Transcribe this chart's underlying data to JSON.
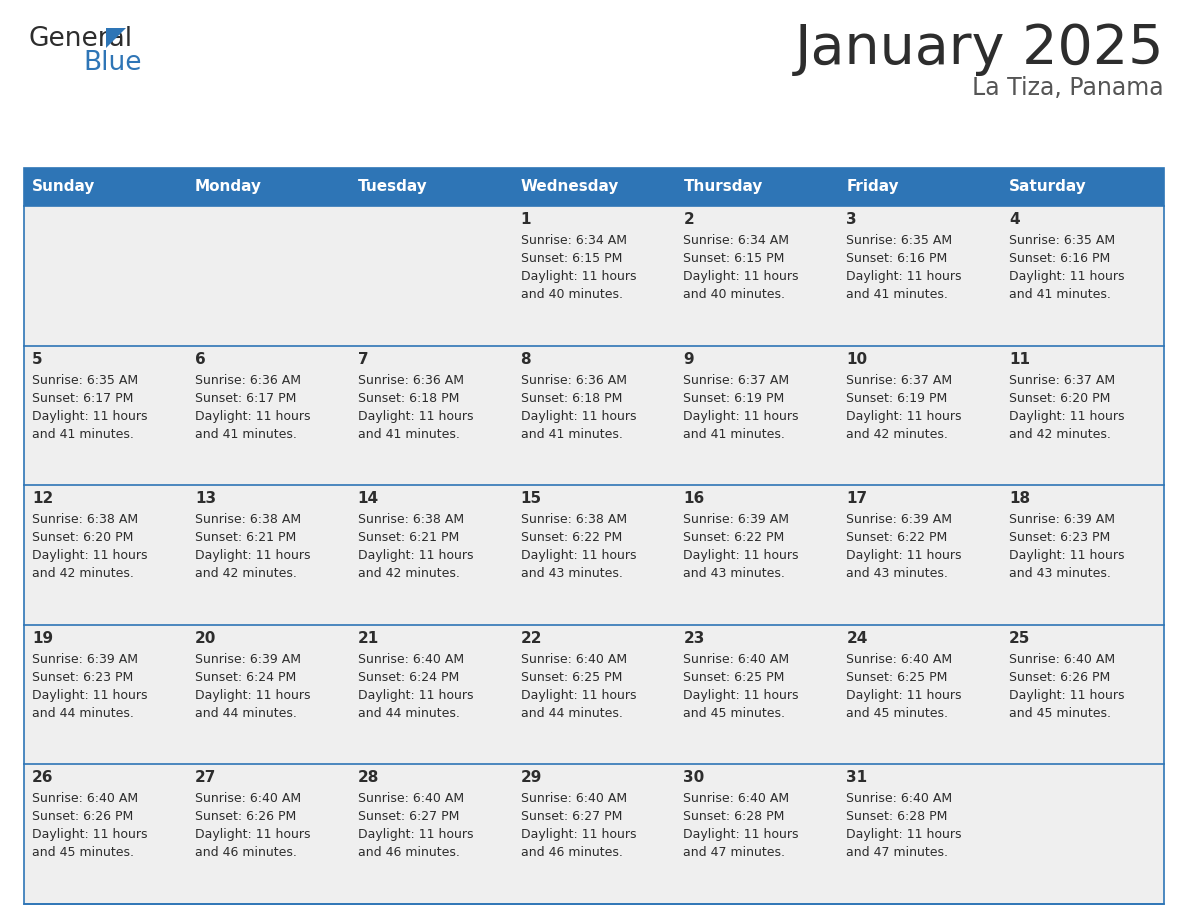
{
  "title": "January 2025",
  "subtitle": "La Tiza, Panama",
  "header_bg": "#2E75B6",
  "header_text_color": "#FFFFFF",
  "row_bg": "#EFEFEF",
  "cell_border_color": "#2E75B6",
  "day_headers": [
    "Sunday",
    "Monday",
    "Tuesday",
    "Wednesday",
    "Thursday",
    "Friday",
    "Saturday"
  ],
  "calendar_data": [
    [
      null,
      null,
      null,
      {
        "day": 1,
        "sunrise": "6:34 AM",
        "sunset": "6:15 PM",
        "daylight": "11 hours and 40 minutes"
      },
      {
        "day": 2,
        "sunrise": "6:34 AM",
        "sunset": "6:15 PM",
        "daylight": "11 hours and 40 minutes"
      },
      {
        "day": 3,
        "sunrise": "6:35 AM",
        "sunset": "6:16 PM",
        "daylight": "11 hours and 41 minutes"
      },
      {
        "day": 4,
        "sunrise": "6:35 AM",
        "sunset": "6:16 PM",
        "daylight": "11 hours and 41 minutes"
      }
    ],
    [
      {
        "day": 5,
        "sunrise": "6:35 AM",
        "sunset": "6:17 PM",
        "daylight": "11 hours and 41 minutes"
      },
      {
        "day": 6,
        "sunrise": "6:36 AM",
        "sunset": "6:17 PM",
        "daylight": "11 hours and 41 minutes"
      },
      {
        "day": 7,
        "sunrise": "6:36 AM",
        "sunset": "6:18 PM",
        "daylight": "11 hours and 41 minutes"
      },
      {
        "day": 8,
        "sunrise": "6:36 AM",
        "sunset": "6:18 PM",
        "daylight": "11 hours and 41 minutes"
      },
      {
        "day": 9,
        "sunrise": "6:37 AM",
        "sunset": "6:19 PM",
        "daylight": "11 hours and 41 minutes"
      },
      {
        "day": 10,
        "sunrise": "6:37 AM",
        "sunset": "6:19 PM",
        "daylight": "11 hours and 42 minutes"
      },
      {
        "day": 11,
        "sunrise": "6:37 AM",
        "sunset": "6:20 PM",
        "daylight": "11 hours and 42 minutes"
      }
    ],
    [
      {
        "day": 12,
        "sunrise": "6:38 AM",
        "sunset": "6:20 PM",
        "daylight": "11 hours and 42 minutes"
      },
      {
        "day": 13,
        "sunrise": "6:38 AM",
        "sunset": "6:21 PM",
        "daylight": "11 hours and 42 minutes"
      },
      {
        "day": 14,
        "sunrise": "6:38 AM",
        "sunset": "6:21 PM",
        "daylight": "11 hours and 42 minutes"
      },
      {
        "day": 15,
        "sunrise": "6:38 AM",
        "sunset": "6:22 PM",
        "daylight": "11 hours and 43 minutes"
      },
      {
        "day": 16,
        "sunrise": "6:39 AM",
        "sunset": "6:22 PM",
        "daylight": "11 hours and 43 minutes"
      },
      {
        "day": 17,
        "sunrise": "6:39 AM",
        "sunset": "6:22 PM",
        "daylight": "11 hours and 43 minutes"
      },
      {
        "day": 18,
        "sunrise": "6:39 AM",
        "sunset": "6:23 PM",
        "daylight": "11 hours and 43 minutes"
      }
    ],
    [
      {
        "day": 19,
        "sunrise": "6:39 AM",
        "sunset": "6:23 PM",
        "daylight": "11 hours and 44 minutes"
      },
      {
        "day": 20,
        "sunrise": "6:39 AM",
        "sunset": "6:24 PM",
        "daylight": "11 hours and 44 minutes"
      },
      {
        "day": 21,
        "sunrise": "6:40 AM",
        "sunset": "6:24 PM",
        "daylight": "11 hours and 44 minutes"
      },
      {
        "day": 22,
        "sunrise": "6:40 AM",
        "sunset": "6:25 PM",
        "daylight": "11 hours and 44 minutes"
      },
      {
        "day": 23,
        "sunrise": "6:40 AM",
        "sunset": "6:25 PM",
        "daylight": "11 hours and 45 minutes"
      },
      {
        "day": 24,
        "sunrise": "6:40 AM",
        "sunset": "6:25 PM",
        "daylight": "11 hours and 45 minutes"
      },
      {
        "day": 25,
        "sunrise": "6:40 AM",
        "sunset": "6:26 PM",
        "daylight": "11 hours and 45 minutes"
      }
    ],
    [
      {
        "day": 26,
        "sunrise": "6:40 AM",
        "sunset": "6:26 PM",
        "daylight": "11 hours and 45 minutes"
      },
      {
        "day": 27,
        "sunrise": "6:40 AM",
        "sunset": "6:26 PM",
        "daylight": "11 hours and 46 minutes"
      },
      {
        "day": 28,
        "sunrise": "6:40 AM",
        "sunset": "6:27 PM",
        "daylight": "11 hours and 46 minutes"
      },
      {
        "day": 29,
        "sunrise": "6:40 AM",
        "sunset": "6:27 PM",
        "daylight": "11 hours and 46 minutes"
      },
      {
        "day": 30,
        "sunrise": "6:40 AM",
        "sunset": "6:28 PM",
        "daylight": "11 hours and 47 minutes"
      },
      {
        "day": 31,
        "sunrise": "6:40 AM",
        "sunset": "6:28 PM",
        "daylight": "11 hours and 47 minutes"
      },
      null
    ]
  ],
  "logo_general_color": "#2d2d2d",
  "logo_blue_color": "#2E75B6",
  "title_color": "#2d2d2d",
  "subtitle_color": "#555555",
  "fig_width": 11.88,
  "fig_height": 9.18,
  "dpi": 100
}
